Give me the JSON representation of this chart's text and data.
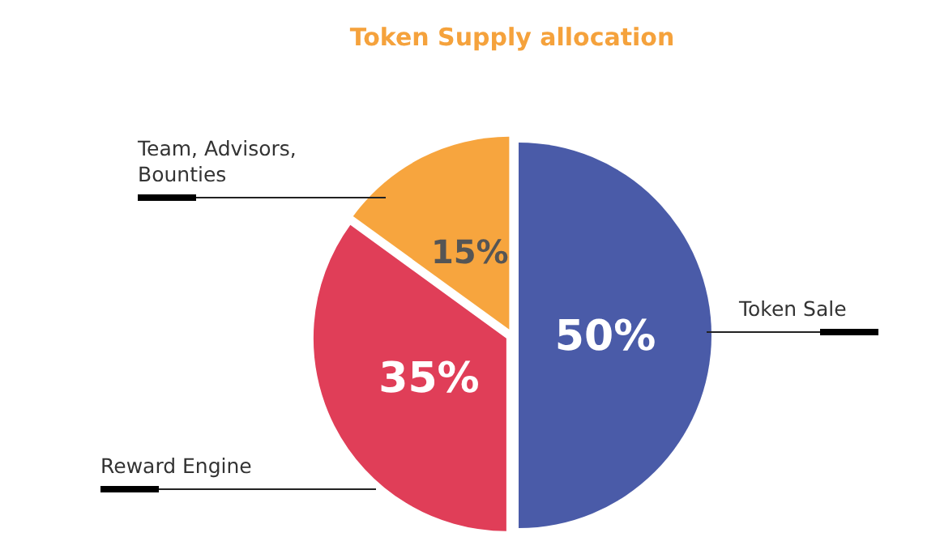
{
  "chart_data": {
    "type": "pie",
    "title": "Token Supply allocation",
    "categories": [
      "Token Sale",
      "Reward Engine",
      "Team, Advisors, Bounties"
    ],
    "values": [
      50,
      35,
      15
    ],
    "value_labels": [
      "50%",
      "35%",
      "15%"
    ],
    "colors": [
      "#4a5ba8",
      "#e03e58",
      "#f7a53e"
    ]
  }
}
